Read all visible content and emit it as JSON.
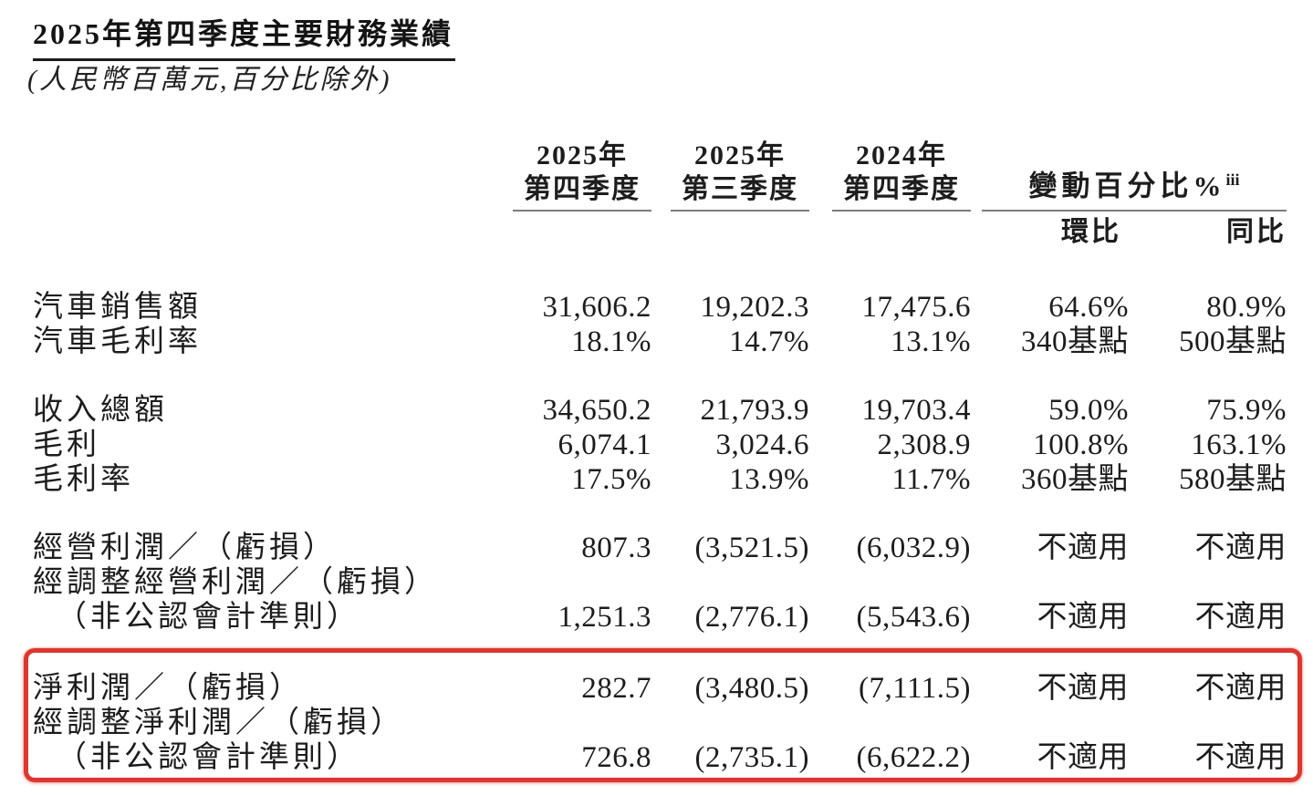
{
  "page": {
    "title": "2025年第四季度主要財務業績",
    "subtitle": "(人民幣百萬元,百分比除外)"
  },
  "colors": {
    "text": "#1d1d1d",
    "rule": "#7b7b7b",
    "highlight": "#dc372e"
  },
  "table": {
    "period_headers": [
      {
        "year": "2025年",
        "quarter": "第四季度"
      },
      {
        "year": "2025年",
        "quarter": "第三季度"
      },
      {
        "year": "2024年",
        "quarter": "第四季度"
      }
    ],
    "change_header": {
      "label": "變動百分比%",
      "note": "iii",
      "qoq": "環比",
      "yoy": "同比"
    },
    "rows": [
      {
        "label_lines": [
          "汽車銷售額"
        ],
        "values": [
          "31,606.2",
          "19,202.3",
          "17,475.6",
          "64.6%",
          "80.9%"
        ]
      },
      {
        "label_lines": [
          "汽車毛利率"
        ],
        "values": [
          "18.1%",
          "14.7%",
          "13.1%",
          "340基點",
          "500基點"
        ]
      },
      {
        "gap": true
      },
      {
        "label_lines": [
          "收入總額"
        ],
        "values": [
          "34,650.2",
          "21,793.9",
          "19,703.4",
          "59.0%",
          "75.9%"
        ]
      },
      {
        "label_lines": [
          "毛利"
        ],
        "values": [
          "6,074.1",
          "3,024.6",
          "2,308.9",
          "100.8%",
          "163.1%"
        ]
      },
      {
        "label_lines": [
          "毛利率"
        ],
        "values": [
          "17.5%",
          "13.9%",
          "11.7%",
          "360基點",
          "580基點"
        ]
      },
      {
        "gap": true
      },
      {
        "label_lines": [
          "經營利潤／（虧損）"
        ],
        "values": [
          "807.3",
          "(3,521.5)",
          "(6,032.9)",
          "不適用",
          "不適用"
        ]
      },
      {
        "label_lines": [
          "經調整經營利潤／（虧損）",
          "（非公認會計準則）"
        ],
        "values": [
          "1,251.3",
          "(2,776.1)",
          "(5,543.6)",
          "不適用",
          "不適用"
        ]
      },
      {
        "gap": true
      },
      {
        "label_lines": [
          "淨利潤／（虧損）"
        ],
        "values": [
          "282.7",
          "(3,480.5)",
          "(7,111.5)",
          "不適用",
          "不適用"
        ],
        "highlighted": true
      },
      {
        "label_lines": [
          "經調整淨利潤／（虧損）",
          "（非公認會計準則）"
        ],
        "values": [
          "726.8",
          "(2,735.1)",
          "(6,622.2)",
          "不適用",
          "不適用"
        ],
        "highlighted": true
      }
    ]
  }
}
